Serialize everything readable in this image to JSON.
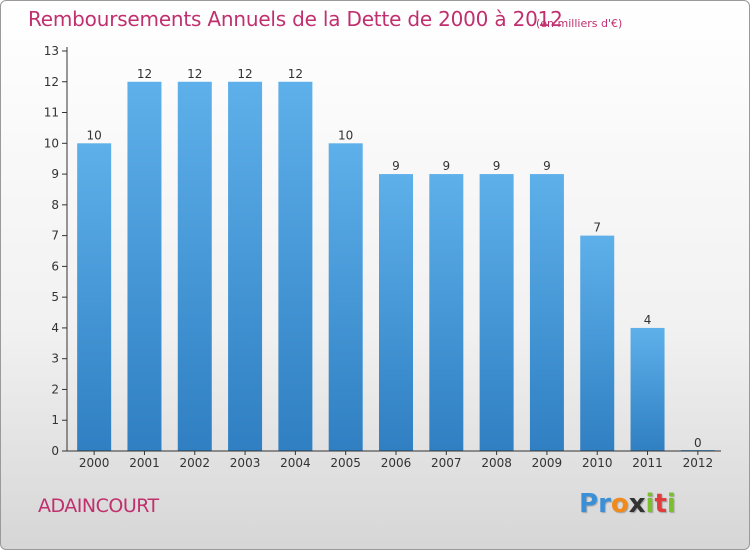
{
  "title": "Remboursements Annuels de la Dette de 2000 à 2012",
  "unit": "(en milliers d'€)",
  "commune": "ADAINCOURT",
  "logo": {
    "text": "Proxiti",
    "letters": [
      "P",
      "r",
      "o",
      "x",
      "i",
      "t",
      "i"
    ],
    "colors": [
      "#3b8fd6",
      "#3b8fd6",
      "#f08a1c",
      "#333333",
      "#7cbf2e",
      "#e03c3c",
      "#7cbf2e"
    ]
  },
  "colors": {
    "title": "#c0306e",
    "bar_light": "#5eb0ea",
    "bar_dark": "#2f7fc2",
    "axis": "#333333"
  },
  "chart_data": {
    "type": "bar",
    "categories": [
      "2000",
      "2001",
      "2002",
      "2003",
      "2004",
      "2005",
      "2006",
      "2007",
      "2008",
      "2009",
      "2010",
      "2011",
      "2012"
    ],
    "values": [
      10,
      12,
      12,
      12,
      12,
      10,
      9,
      9,
      9,
      9,
      7,
      4,
      0
    ],
    "ylim": [
      0,
      13
    ],
    "yticks": [
      0,
      1,
      2,
      3,
      4,
      5,
      6,
      7,
      8,
      9,
      10,
      11,
      12,
      13
    ],
    "grid": false,
    "legend": "none"
  }
}
